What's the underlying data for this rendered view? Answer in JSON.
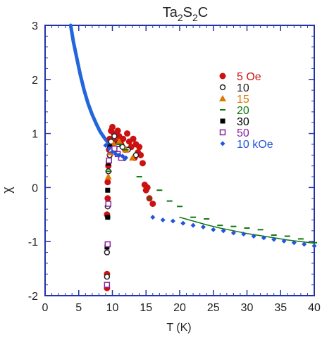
{
  "chart_data": {
    "type": "scatter",
    "title_base": "Ta",
    "title_parts": [
      {
        "text": "Ta",
        "sub": false
      },
      {
        "text": "2",
        "sub": true
      },
      {
        "text": "S",
        "sub": false
      },
      {
        "text": "2",
        "sub": true
      },
      {
        "text": "C",
        "sub": false
      }
    ],
    "xlabel": "T (K)",
    "ylabel": "χ",
    "xlim": [
      0,
      40
    ],
    "ylim": [
      -2,
      3
    ],
    "xticks": [
      0,
      5,
      10,
      15,
      20,
      25,
      30,
      35,
      40
    ],
    "yticks": [
      -2,
      -1,
      0,
      1,
      2,
      3
    ],
    "legend_position": "top-right",
    "series": [
      {
        "name": "5 Oe",
        "color": "#cc1111",
        "marker": "filled-circle",
        "points": [
          [
            9.2,
            -1.86
          ],
          [
            9.2,
            -1.6
          ],
          [
            9.2,
            -0.5
          ],
          [
            9.3,
            -0.2
          ],
          [
            9.3,
            0.1
          ],
          [
            9.4,
            0.4
          ],
          [
            9.5,
            0.7
          ],
          [
            9.6,
            0.9
          ],
          [
            9.8,
            1.05
          ],
          [
            10.0,
            1.12
          ],
          [
            10.2,
            1.0
          ],
          [
            10.5,
            0.85
          ],
          [
            10.8,
            1.05
          ],
          [
            11.0,
            0.95
          ],
          [
            11.3,
            0.8
          ],
          [
            11.6,
            0.9
          ],
          [
            11.9,
            0.7
          ],
          [
            12.2,
            1.0
          ],
          [
            12.5,
            0.85
          ],
          [
            12.8,
            0.75
          ],
          [
            13.1,
            0.9
          ],
          [
            13.3,
            0.55
          ],
          [
            13.5,
            0.8
          ],
          [
            13.8,
            0.65
          ],
          [
            14.0,
            0.75
          ],
          [
            14.2,
            0.6
          ],
          [
            14.5,
            0.45
          ],
          [
            14.8,
            0.05
          ],
          [
            15.0,
            -0.05
          ],
          [
            15.2,
            0.0
          ],
          [
            15.5,
            -0.2
          ],
          [
            16.0,
            -0.3
          ]
        ]
      },
      {
        "name": "10",
        "color": "#222222",
        "marker": "open-circle",
        "points": [
          [
            9.2,
            -1.65
          ],
          [
            9.2,
            -1.2
          ],
          [
            9.3,
            -0.35
          ],
          [
            9.4,
            0.3
          ],
          [
            9.6,
            0.6
          ],
          [
            9.8,
            0.85
          ],
          [
            10.3,
            0.95
          ],
          [
            10.8,
            0.8
          ],
          [
            11.5,
            0.75
          ],
          [
            12.3,
            0.7
          ],
          [
            13.5,
            0.6
          ]
        ]
      },
      {
        "name": "15",
        "color": "#dd7700",
        "marker": "filled-triangle",
        "points": [
          [
            9.4,
            0.2
          ],
          [
            9.7,
            0.65
          ],
          [
            10.2,
            0.8
          ],
          [
            11.0,
            0.85
          ],
          [
            12.0,
            0.7
          ],
          [
            13.0,
            0.55
          ]
        ]
      },
      {
        "name": "20",
        "color": "#117711",
        "marker": "dash",
        "points": [
          [
            9.3,
            -0.55
          ],
          [
            9.5,
            0.3
          ],
          [
            10.0,
            0.75
          ],
          [
            11.0,
            0.8
          ],
          [
            12.0,
            0.7
          ],
          [
            14.0,
            0.2
          ],
          [
            15.5,
            -0.2
          ],
          [
            17.0,
            -0.05
          ],
          [
            18.5,
            -0.25
          ],
          [
            20.0,
            -0.35
          ],
          [
            22.0,
            -0.55
          ],
          [
            24.0,
            -0.58
          ],
          [
            26.0,
            -0.7
          ],
          [
            28.0,
            -0.72
          ],
          [
            30.0,
            -0.75
          ],
          [
            32.0,
            -0.78
          ],
          [
            34.0,
            -0.88
          ],
          [
            36.0,
            -0.9
          ],
          [
            38.0,
            -0.95
          ],
          [
            40.0,
            -1.02
          ]
        ]
      },
      {
        "name": "30",
        "color": "#000000",
        "marker": "filled-square",
        "points": [
          [
            9.2,
            -1.1
          ],
          [
            9.3,
            -0.55
          ],
          [
            9.3,
            -0.05
          ],
          [
            9.4,
            0.45
          ],
          [
            9.6,
            0.75
          ]
        ]
      },
      {
        "name": "50",
        "color": "#882299",
        "marker": "open-square",
        "points": [
          [
            9.2,
            -1.8
          ],
          [
            9.3,
            -1.05
          ],
          [
            9.4,
            -0.3
          ],
          [
            9.5,
            0.5
          ],
          [
            9.8,
            0.7
          ],
          [
            10.3,
            0.72
          ],
          [
            10.8,
            0.62
          ],
          [
            11.3,
            0.55
          ]
        ]
      },
      {
        "name": "10 kOe",
        "color": "#2255dd",
        "marker": "filled-diamond",
        "points": [
          [
            9.0,
            0.78
          ],
          [
            9.5,
            0.72
          ],
          [
            10.0,
            0.66
          ],
          [
            10.5,
            0.62
          ],
          [
            11.0,
            0.6
          ],
          [
            11.5,
            0.58
          ],
          [
            12.0,
            0.55
          ],
          [
            16.0,
            -0.55
          ],
          [
            17.5,
            -0.6
          ],
          [
            19.0,
            -0.62
          ],
          [
            20.5,
            -0.66
          ],
          [
            22.0,
            -0.7
          ],
          [
            23.5,
            -0.73
          ],
          [
            25.0,
            -0.78
          ],
          [
            26.5,
            -0.8
          ],
          [
            28.0,
            -0.84
          ],
          [
            29.5,
            -0.86
          ],
          [
            31.0,
            -0.9
          ],
          [
            32.5,
            -0.93
          ],
          [
            34.0,
            -0.96
          ],
          [
            35.5,
            -0.99
          ],
          [
            37.0,
            -1.02
          ],
          [
            38.5,
            -1.05
          ],
          [
            40.0,
            -1.08
          ]
        ]
      }
    ],
    "fit_curve": {
      "color": "#2266dd",
      "points": [
        [
          3.8,
          3.0
        ],
        [
          4.2,
          2.7
        ],
        [
          4.7,
          2.4
        ],
        [
          5.2,
          2.1
        ],
        [
          5.8,
          1.8
        ],
        [
          6.4,
          1.55
        ],
        [
          7.0,
          1.35
        ],
        [
          7.6,
          1.18
        ],
        [
          8.2,
          1.03
        ],
        [
          8.8,
          0.92
        ],
        [
          9.4,
          0.82
        ],
        [
          10.0,
          0.72
        ],
        [
          10.6,
          0.64
        ],
        [
          11.2,
          0.57
        ],
        [
          11.8,
          0.52
        ]
      ]
    },
    "secondary_fit": {
      "color": "#117711",
      "points": [
        [
          20.0,
          -0.55
        ],
        [
          22.0,
          -0.62
        ],
        [
          24.0,
          -0.69
        ],
        [
          26.0,
          -0.75
        ],
        [
          28.0,
          -0.8
        ],
        [
          30.0,
          -0.85
        ],
        [
          32.0,
          -0.89
        ],
        [
          34.0,
          -0.93
        ],
        [
          36.0,
          -0.97
        ],
        [
          38.0,
          -1.0
        ],
        [
          40.0,
          -1.03
        ]
      ]
    }
  }
}
